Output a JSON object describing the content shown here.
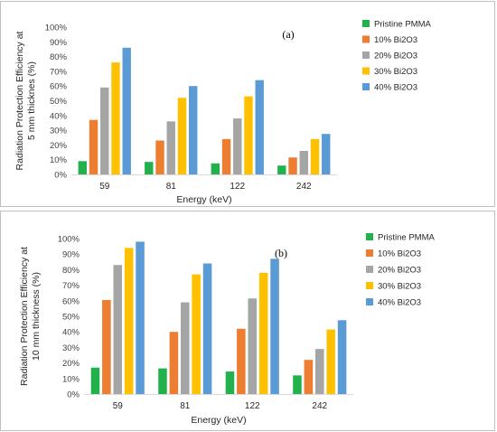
{
  "chart_data": [
    {
      "type": "bar",
      "panel_label": "(a)",
      "categories": [
        "59",
        "81",
        "122",
        "242"
      ],
      "xlabel": "Energy (keV)",
      "ylabel": [
        "Radiation Protection Efficiency at",
        "5 mm thicknes (%)"
      ],
      "ylim": [
        0,
        100
      ],
      "yticks": [
        "0%",
        "10%",
        "20%",
        "30%",
        "40%",
        "50%",
        "60%",
        "70%",
        "80%",
        "90%",
        "100%"
      ],
      "grid": false,
      "legend_position": "right",
      "series": [
        {
          "name": "Pristine PMMA",
          "color": "#22b14c",
          "values": [
            9,
            8.5,
            7.5,
            6
          ]
        },
        {
          "name": "10% Bi2O3",
          "color": "#ed7d31",
          "values": [
            37,
            23,
            24,
            11.5
          ]
        },
        {
          "name": "20% Bi2O3",
          "color": "#a5a5a5",
          "values": [
            59,
            36,
            38,
            16
          ]
        },
        {
          "name": "30% Bi2O3",
          "color": "#ffc000",
          "values": [
            76,
            52,
            53,
            24
          ]
        },
        {
          "name": "40% Bi2O3",
          "color": "#5b9bd5",
          "values": [
            86,
            60,
            64,
            27.5
          ]
        }
      ]
    },
    {
      "type": "bar",
      "panel_label": "(b)",
      "categories": [
        "59",
        "81",
        "122",
        "242"
      ],
      "xlabel": "Energy (keV)",
      "ylabel": [
        "Radiation Protection Efficiency at",
        "10 mm thickness (%)"
      ],
      "ylim": [
        0,
        100
      ],
      "yticks": [
        "0%",
        "10%",
        "20%",
        "30%",
        "40%",
        "50%",
        "60%",
        "70%",
        "80%",
        "90%",
        "100%"
      ],
      "grid": false,
      "legend_position": "right",
      "series": [
        {
          "name": "Pristine PMMA",
          "color": "#22b14c",
          "values": [
            17,
            16.5,
            14.5,
            12
          ]
        },
        {
          "name": "10% Bi2O3",
          "color": "#ed7d31",
          "values": [
            60.5,
            40,
            42,
            22
          ]
        },
        {
          "name": "20% Bi2O3",
          "color": "#a5a5a5",
          "values": [
            83,
            59,
            61.5,
            29
          ]
        },
        {
          "name": "30% Bi2O3",
          "color": "#ffc000",
          "values": [
            94,
            77,
            78,
            41.5
          ]
        },
        {
          "name": "40% Bi2O3",
          "color": "#5b9bd5",
          "values": [
            98,
            84,
            87,
            47.5
          ]
        }
      ]
    }
  ]
}
